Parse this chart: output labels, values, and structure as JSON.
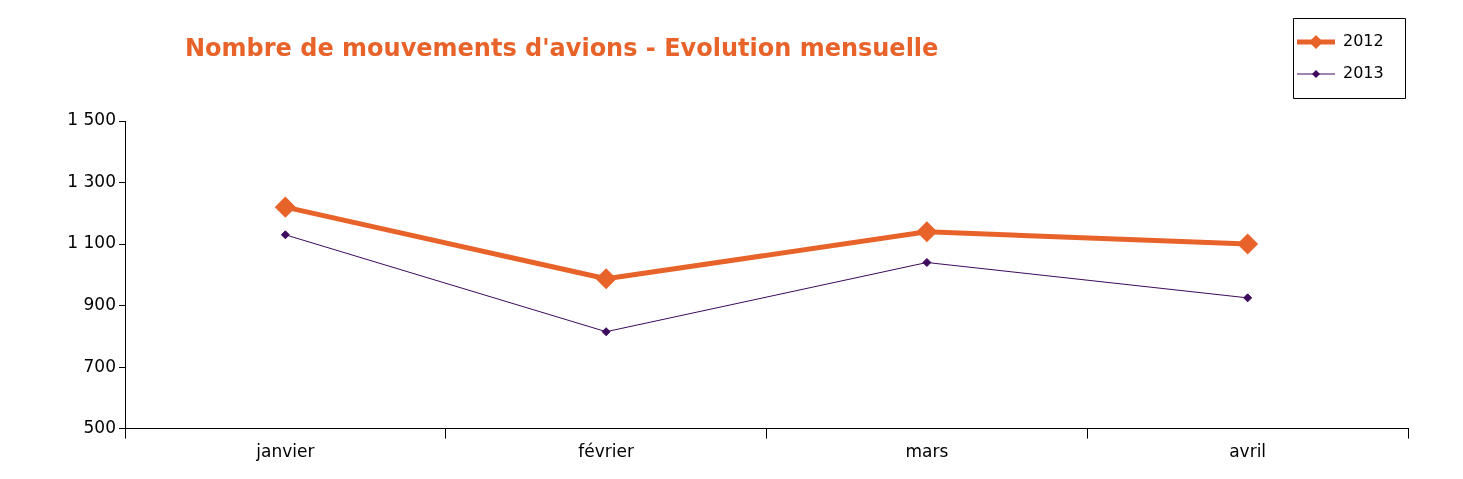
{
  "chart_data": {
    "type": "line",
    "title": "Nombre de mouvements d'avions - Evolution mensuelle",
    "categories": [
      "janvier",
      "février",
      "mars",
      "avril"
    ],
    "series": [
      {
        "name": "2012",
        "color": "#e8632a",
        "values": [
          1220,
          987,
          1140,
          1100
        ]
      },
      {
        "name": "2013",
        "color": "#3d0a5e",
        "values": [
          1130,
          815,
          1040,
          925
        ]
      }
    ],
    "ylim": [
      500,
      1500
    ],
    "yticks": [
      500,
      700,
      900,
      {
        "value": 1100,
        "label": "1 100"
      },
      {
        "value": 1300,
        "label": "1 300"
      },
      {
        "value": 1500,
        "label": "1 500"
      }
    ],
    "legend": "top right",
    "marker": "diamond",
    "line_style": "solid"
  }
}
